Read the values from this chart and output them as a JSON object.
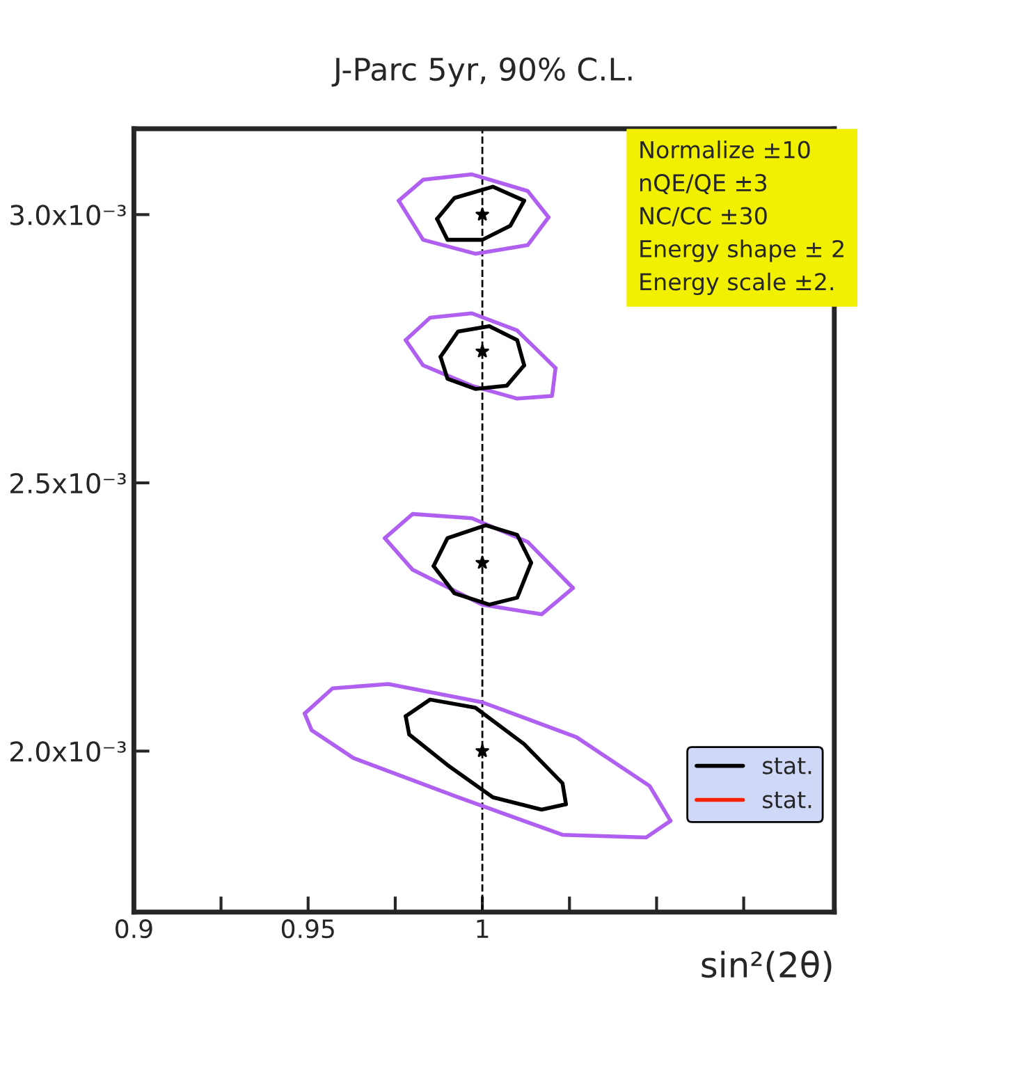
{
  "chart_data": {
    "type": "line",
    "title": "J-Parc 5yr, 90% C.L.",
    "xlabel": "sin²(2θ)",
    "xlim": [
      0.9,
      1.101
    ],
    "ylim": [
      0.0017,
      0.00316
    ],
    "xticks": [
      0.9,
      {
        "value": 0.925,
        "label": null
      },
      0.95,
      {
        "value": 0.975,
        "label": null
      },
      1,
      {
        "value": 1.025,
        "label": null
      },
      {
        "value": 1.05,
        "label": null
      },
      {
        "value": 1.075,
        "label": null
      }
    ],
    "yticks": [
      {
        "value": 0.002,
        "label": "2.0x10⁻³"
      },
      {
        "value": 0.0025,
        "label": "2.5x10⁻³"
      },
      {
        "value": 0.003,
        "label": "3.0x10⁻³"
      }
    ],
    "grid": false,
    "legend": "right",
    "line_style": "solid",
    "ref_lines": [
      {
        "axis": "x",
        "value": 1,
        "line_style": "dashed",
        "color": "#000000"
      }
    ],
    "annotations": [
      "Normalize ±10",
      "nQE/QE ±3",
      "NC/CC ±30",
      "Energy shape ± 2",
      "Energy scale ±2."
    ],
    "series": [
      {
        "color": "#b060f0",
        "x": [
          0.976,
          0.983,
          0.997,
          1.013,
          1.019
        ],
        "values": [
          0.003026,
          0.003065,
          0.003075,
          0.003044,
          0.002995
        ]
      },
      {
        "color": "#b060f0",
        "x": [
          1.019,
          1.013,
          0.998,
          0.983,
          0.976
        ],
        "values": [
          0.002995,
          0.002943,
          0.002927,
          0.002953,
          0.003026
        ]
      },
      {
        "color": "#b060f0",
        "x": [
          0.978,
          0.985,
          0.997,
          1.01,
          1.021
        ],
        "values": [
          0.002766,
          0.002808,
          0.002816,
          0.002784,
          0.002714
        ]
      },
      {
        "color": "#b060f0",
        "x": [
          1.021,
          1.02,
          1.01,
          0.997,
          0.983,
          0.978
        ],
        "values": [
          0.002714,
          0.002662,
          0.002657,
          0.002681,
          0.002719,
          0.002766
        ]
      },
      {
        "color": "#b060f0",
        "x": [
          0.972,
          0.98,
          0.997,
          1.013,
          1.026
        ],
        "values": [
          0.002397,
          0.002442,
          0.002434,
          0.00239,
          0.002304
        ]
      },
      {
        "color": "#b060f0",
        "x": [
          1.026,
          1.017,
          1.0,
          0.98,
          0.972
        ],
        "values": [
          0.002304,
          0.002255,
          0.002273,
          0.002338,
          0.002397
        ]
      },
      {
        "color": "#b060f0",
        "x": [
          0.949,
          0.957,
          0.973,
          1.0,
          1.027,
          1.048,
          1.054
        ],
        "values": [
          0.00207,
          0.002117,
          0.002125,
          0.002091,
          0.002026,
          0.001935,
          0.00187
        ]
      },
      {
        "color": "#b060f0",
        "x": [
          1.054,
          1.047,
          1.023,
          0.993,
          0.963,
          0.951,
          0.949
        ],
        "values": [
          0.00187,
          0.001839,
          0.001844,
          0.001914,
          0.001987,
          0.002039,
          0.00207
        ]
      },
      {
        "name": "stat.",
        "color": "#000000",
        "x": [
          0.987,
          0.992,
          1.003,
          1.012
        ],
        "values": [
          0.002992,
          0.003031,
          0.003052,
          0.003026
        ]
      },
      {
        "color": "#000000",
        "x": [
          1.012,
          1.008,
          1.0,
          0.99,
          0.987
        ],
        "values": [
          0.003026,
          0.002979,
          0.002953,
          0.002953,
          0.002992
        ]
      },
      {
        "color": "#000000",
        "x": [
          0.988,
          0.993,
          1.002,
          1.01,
          1.012
        ],
        "values": [
          0.002735,
          0.002782,
          0.002792,
          0.002766,
          0.002719
        ]
      },
      {
        "color": "#000000",
        "x": [
          1.012,
          1.007,
          0.998,
          0.99,
          0.988
        ],
        "values": [
          0.002719,
          0.002681,
          0.002675,
          0.002694,
          0.002735
        ]
      },
      {
        "color": "#000000",
        "x": [
          0.986,
          0.99,
          1.001,
          1.01,
          1.014
        ],
        "values": [
          0.002345,
          0.002397,
          0.002421,
          0.002403,
          0.002351
        ]
      },
      {
        "color": "#000000",
        "x": [
          1.014,
          1.01,
          1.002,
          0.992,
          0.986
        ],
        "values": [
          0.002351,
          0.002286,
          0.002273,
          0.002294,
          0.002345
        ]
      },
      {
        "color": "#000000",
        "x": [
          0.978,
          0.985,
          0.998,
          1.012,
          1.023,
          1.024
        ],
        "values": [
          0.002065,
          0.002096,
          0.002081,
          0.002013,
          0.00194,
          0.001901
        ]
      },
      {
        "color": "#000000",
        "x": [
          1.024,
          1.017,
          1.003,
          0.99,
          0.979,
          0.978
        ],
        "values": [
          0.001901,
          0.001891,
          0.001914,
          0.001974,
          0.002031,
          0.002065
        ]
      },
      {
        "name": "stat.",
        "color": "#ff2000"
      },
      {
        "type": "scatter",
        "marker": "star",
        "color": "#000000",
        "x": [
          1.0,
          1.0,
          1.0,
          1.0
        ],
        "values": [
          0.003,
          0.002745,
          0.002351,
          0.002
        ]
      }
    ]
  }
}
